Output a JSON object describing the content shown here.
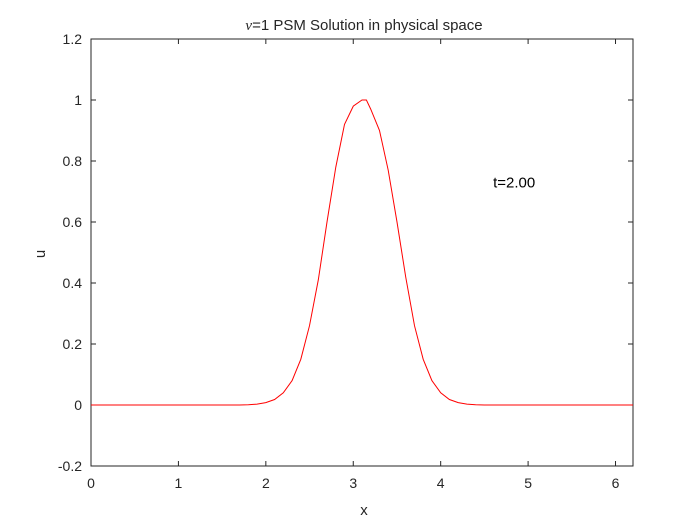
{
  "chart_data": {
    "type": "line",
    "title_symbol": "ν",
    "title_rest": "=1 PSM Solution in physical space",
    "xlabel": "x",
    "ylabel": "u",
    "xlim": [
      0,
      6.2
    ],
    "ylim": [
      -0.2,
      1.2
    ],
    "xticks": [
      0,
      1,
      2,
      3,
      4,
      5,
      6
    ],
    "xtick_labels": [
      "0",
      "1",
      "2",
      "3",
      "4",
      "5",
      "6"
    ],
    "yticks": [
      -0.2,
      0,
      0.2,
      0.4,
      0.6,
      0.8,
      1.0,
      1.2
    ],
    "ytick_labels": [
      "-0.2",
      "0",
      "0.2",
      "0.4",
      "0.6",
      "0.8",
      "1",
      "1.2"
    ],
    "grid": false,
    "annotation": {
      "text": "t=2.00",
      "x": 4.6,
      "y": 0.73
    },
    "line_color": "#ff0000",
    "axis_color": "#262626",
    "series": [
      {
        "color": "#ff0000",
        "x": [
          0,
          0.5,
          1.0,
          1.5,
          1.7,
          1.8,
          1.9,
          2.0,
          2.1,
          2.2,
          2.3,
          2.4,
          2.5,
          2.6,
          2.7,
          2.8,
          2.9,
          3.0,
          3.1,
          3.15,
          3.2,
          3.3,
          3.4,
          3.5,
          3.6,
          3.7,
          3.8,
          3.9,
          4.0,
          4.1,
          4.2,
          4.3,
          4.4,
          4.5,
          4.6,
          4.8,
          5.0,
          5.5,
          6.0,
          6.2
        ],
        "y": [
          0,
          0,
          0,
          0,
          0.0,
          0.001,
          0.003,
          0.008,
          0.018,
          0.04,
          0.08,
          0.15,
          0.26,
          0.41,
          0.6,
          0.78,
          0.92,
          0.98,
          1.0,
          1.0,
          0.97,
          0.9,
          0.77,
          0.6,
          0.42,
          0.26,
          0.15,
          0.08,
          0.04,
          0.018,
          0.008,
          0.003,
          0.001,
          0.0,
          0,
          0,
          0,
          0,
          0,
          0
        ]
      }
    ]
  }
}
